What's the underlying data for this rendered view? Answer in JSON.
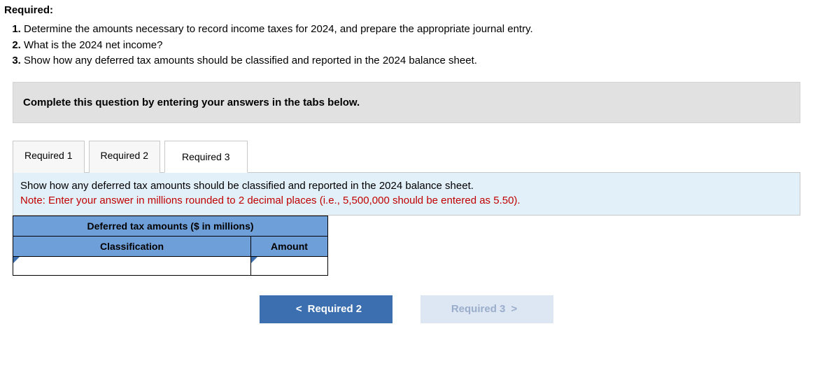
{
  "heading": "Required:",
  "requirements": [
    "Determine the amounts necessary to record income taxes for 2024, and prepare the appropriate journal entry.",
    "What is the 2024 net income?",
    "Show how any deferred tax amounts should be classified and reported in the 2024 balance sheet."
  ],
  "instruction_bar": "Complete this question by entering your answers in the tabs below.",
  "tabs": {
    "t1": "Required 1",
    "t2": "Required 2",
    "t3": "Required 3",
    "active_index": 2
  },
  "panel": {
    "prompt": "Show how any deferred tax amounts should be classified and reported in the 2024 balance sheet.",
    "note": "Note: Enter your answer in millions rounded to 2 decimal places (i.e., 5,500,000 should be entered as 5.50)."
  },
  "table": {
    "title": "Deferred tax amounts ($ in millions)",
    "col_classification": "Classification",
    "col_amount": "Amount",
    "rows": [
      {
        "classification": "",
        "amount": ""
      }
    ],
    "header_bg": "#6f9fd8",
    "border_color": "#000000",
    "col_widths": {
      "classification": 340,
      "amount": 110
    }
  },
  "nav": {
    "prev_label": "Required 2",
    "prev_chevron": "<",
    "next_label": "Required 3",
    "next_chevron": ">",
    "prev_bg": "#3b6fb0",
    "prev_fg": "#ffffff",
    "next_bg": "#dde6f3",
    "next_fg": "#9aaecb"
  },
  "colors": {
    "instruction_bg": "#e1e1e1",
    "panel_bg": "#e2f0fa",
    "note_fg": "#c00000"
  }
}
